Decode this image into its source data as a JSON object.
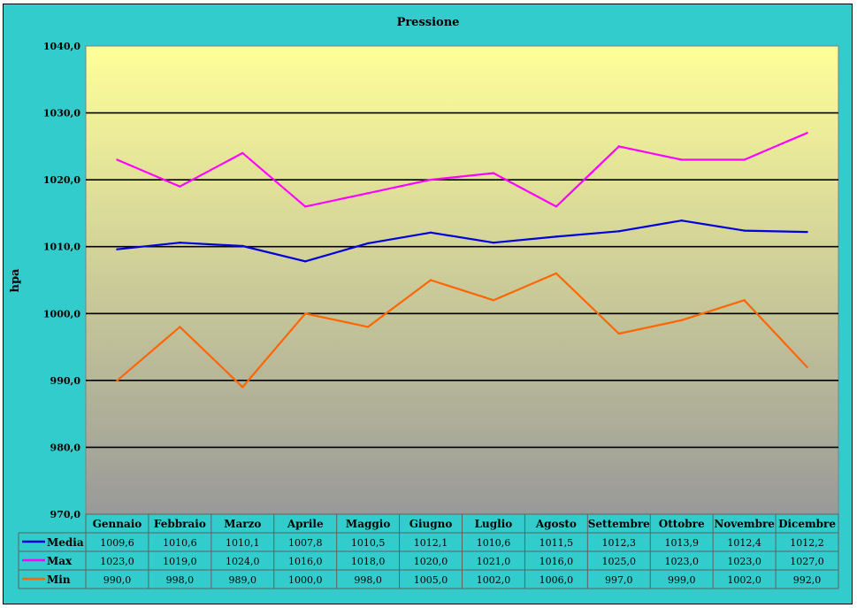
{
  "chart_data": {
    "type": "line",
    "title": "Pressione",
    "ylabel": "hpa",
    "xlabel": "",
    "ylim": [
      970,
      1040
    ],
    "yticks": [
      "970,0",
      "980,0",
      "990,0",
      "1000,0",
      "1010,0",
      "1020,0",
      "1030,0",
      "1040,0"
    ],
    "grid": true,
    "legend": "data-table",
    "categories": [
      "Gennaio",
      "Febbraio",
      "Marzo",
      "Aprile",
      "Maggio",
      "Giugno",
      "Luglio",
      "Agosto",
      "Settembre",
      "Ottobre",
      "Novembre",
      "Dicembre"
    ],
    "series": [
      {
        "name": "Media",
        "color": "#0000dd",
        "values": [
          1009.6,
          1010.6,
          1010.1,
          1007.8,
          1010.5,
          1012.1,
          1010.6,
          1011.5,
          1012.3,
          1013.9,
          1012.4,
          1012.2
        ],
        "labels": [
          "1009,6",
          "1010,6",
          "1010,1",
          "1007,8",
          "1010,5",
          "1012,1",
          "1010,6",
          "1011,5",
          "1012,3",
          "1013,9",
          "1012,4",
          "1012,2"
        ]
      },
      {
        "name": "Max",
        "color": "#ff00ff",
        "values": [
          1023.0,
          1019.0,
          1024.0,
          1016.0,
          1018.0,
          1020.0,
          1021.0,
          1016.0,
          1025.0,
          1023.0,
          1023.0,
          1027.0
        ],
        "labels": [
          "1023,0",
          "1019,0",
          "1024,0",
          "1016,0",
          "1018,0",
          "1020,0",
          "1021,0",
          "1016,0",
          "1025,0",
          "1023,0",
          "1023,0",
          "1027,0"
        ]
      },
      {
        "name": "Min",
        "color": "#ff6600",
        "values": [
          990.0,
          998.0,
          989.0,
          1000.0,
          998.0,
          1005.0,
          1002.0,
          1006.0,
          997.0,
          999.0,
          1002.0,
          992.0
        ],
        "labels": [
          "990,0",
          "998,0",
          "989,0",
          "1000,0",
          "998,0",
          "1005,0",
          "1002,0",
          "1006,0",
          "997,0",
          "999,0",
          "1002,0",
          "992,0"
        ]
      }
    ]
  },
  "colors": {
    "frame_background": "#33cccc",
    "plot_gradient_top": "#ffff99",
    "plot_gradient_bottom": "#999999",
    "grid": "#000000"
  }
}
